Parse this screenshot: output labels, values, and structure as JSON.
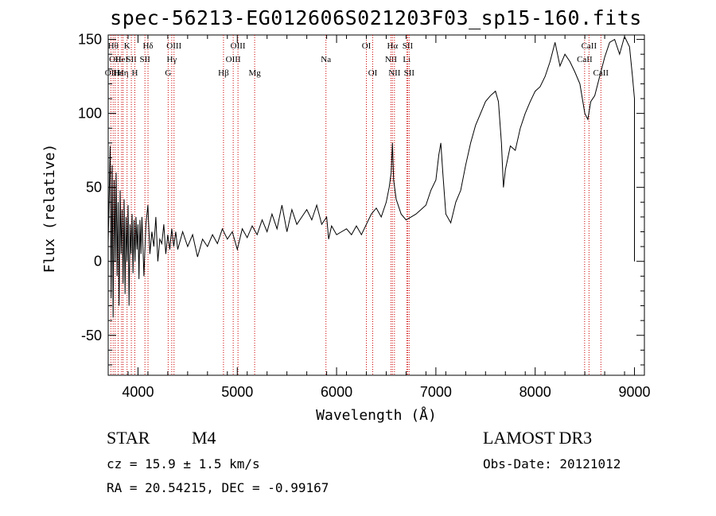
{
  "chart_data": {
    "type": "line",
    "title": "spec-56213-EG012606S021203F03_sp15-160.fits",
    "xlabel": "Wavelength (Å)",
    "ylabel": "Flux (relative)",
    "xlim": [
      3700,
      9100
    ],
    "ylim": [
      -77,
      153
    ],
    "xticks": [
      4000,
      5000,
      6000,
      7000,
      8000,
      9000
    ],
    "yticks": [
      -50,
      0,
      50,
      100,
      150
    ],
    "grid": false,
    "line_color": "#000000",
    "marker_color": "#cc0000",
    "series": [
      {
        "values": [
          [
            3700,
            12
          ],
          [
            3720,
            78
          ],
          [
            3730,
            -25
          ],
          [
            3740,
            65
          ],
          [
            3750,
            -38
          ],
          [
            3760,
            55
          ],
          [
            3770,
            0
          ],
          [
            3780,
            60
          ],
          [
            3790,
            -10
          ],
          [
            3800,
            40
          ],
          [
            3810,
            -30
          ],
          [
            3820,
            48
          ],
          [
            3830,
            5
          ],
          [
            3840,
            35
          ],
          [
            3850,
            -15
          ],
          [
            3860,
            42
          ],
          [
            3870,
            -22
          ],
          [
            3880,
            30
          ],
          [
            3890,
            0
          ],
          [
            3900,
            38
          ],
          [
            3910,
            -30
          ],
          [
            3920,
            25
          ],
          [
            3930,
            5
          ],
          [
            3940,
            32
          ],
          [
            3950,
            -8
          ],
          [
            3960,
            28
          ],
          [
            3970,
            0
          ],
          [
            3980,
            30
          ],
          [
            3990,
            8
          ],
          [
            4000,
            25
          ],
          [
            4010,
            -12
          ],
          [
            4020,
            28
          ],
          [
            4030,
            5
          ],
          [
            4040,
            30
          ],
          [
            4060,
            -10
          ],
          [
            4080,
            25
          ],
          [
            4100,
            38
          ],
          [
            4120,
            5
          ],
          [
            4140,
            20
          ],
          [
            4160,
            10
          ],
          [
            4180,
            30
          ],
          [
            4200,
            0
          ],
          [
            4220,
            15
          ],
          [
            4240,
            12
          ],
          [
            4260,
            25
          ],
          [
            4280,
            5
          ],
          [
            4300,
            18
          ],
          [
            4320,
            8
          ],
          [
            4340,
            22
          ],
          [
            4360,
            10
          ],
          [
            4380,
            20
          ],
          [
            4400,
            8
          ],
          [
            4450,
            20
          ],
          [
            4500,
            10
          ],
          [
            4550,
            18
          ],
          [
            4600,
            3
          ],
          [
            4650,
            15
          ],
          [
            4700,
            10
          ],
          [
            4750,
            18
          ],
          [
            4800,
            12
          ],
          [
            4850,
            22
          ],
          [
            4900,
            15
          ],
          [
            4950,
            20
          ],
          [
            5000,
            8
          ],
          [
            5050,
            22
          ],
          [
            5100,
            16
          ],
          [
            5150,
            24
          ],
          [
            5200,
            18
          ],
          [
            5250,
            28
          ],
          [
            5300,
            20
          ],
          [
            5350,
            32
          ],
          [
            5400,
            22
          ],
          [
            5450,
            38
          ],
          [
            5500,
            20
          ],
          [
            5550,
            35
          ],
          [
            5600,
            25
          ],
          [
            5650,
            30
          ],
          [
            5700,
            35
          ],
          [
            5750,
            28
          ],
          [
            5800,
            38
          ],
          [
            5850,
            25
          ],
          [
            5900,
            30
          ],
          [
            5920,
            15
          ],
          [
            5950,
            24
          ],
          [
            6000,
            18
          ],
          [
            6050,
            20
          ],
          [
            6100,
            22
          ],
          [
            6150,
            18
          ],
          [
            6200,
            24
          ],
          [
            6250,
            18
          ],
          [
            6300,
            25
          ],
          [
            6350,
            32
          ],
          [
            6400,
            36
          ],
          [
            6450,
            30
          ],
          [
            6500,
            40
          ],
          [
            6530,
            50
          ],
          [
            6550,
            60
          ],
          [
            6563,
            80
          ],
          [
            6575,
            55
          ],
          [
            6600,
            42
          ],
          [
            6650,
            32
          ],
          [
            6700,
            28
          ],
          [
            6750,
            30
          ],
          [
            6800,
            32
          ],
          [
            6850,
            35
          ],
          [
            6900,
            38
          ],
          [
            6950,
            48
          ],
          [
            7000,
            55
          ],
          [
            7030,
            72
          ],
          [
            7050,
            80
          ],
          [
            7070,
            60
          ],
          [
            7100,
            32
          ],
          [
            7150,
            26
          ],
          [
            7200,
            40
          ],
          [
            7250,
            48
          ],
          [
            7300,
            65
          ],
          [
            7350,
            80
          ],
          [
            7400,
            92
          ],
          [
            7450,
            100
          ],
          [
            7500,
            108
          ],
          [
            7550,
            112
          ],
          [
            7600,
            115
          ],
          [
            7630,
            108
          ],
          [
            7660,
            80
          ],
          [
            7680,
            50
          ],
          [
            7700,
            62
          ],
          [
            7750,
            78
          ],
          [
            7800,
            75
          ],
          [
            7850,
            90
          ],
          [
            7900,
            100
          ],
          [
            7950,
            108
          ],
          [
            8000,
            115
          ],
          [
            8050,
            118
          ],
          [
            8100,
            125
          ],
          [
            8150,
            135
          ],
          [
            8200,
            148
          ],
          [
            8250,
            132
          ],
          [
            8300,
            140
          ],
          [
            8350,
            135
          ],
          [
            8400,
            128
          ],
          [
            8450,
            120
          ],
          [
            8500,
            100
          ],
          [
            8530,
            96
          ],
          [
            8560,
            108
          ],
          [
            8600,
            112
          ],
          [
            8650,
            125
          ],
          [
            8700,
            138
          ],
          [
            8750,
            148
          ],
          [
            8800,
            150
          ],
          [
            8850,
            140
          ],
          [
            8900,
            152
          ],
          [
            8950,
            145
          ],
          [
            8980,
            125
          ],
          [
            9000,
            110
          ],
          [
            9000,
            28
          ],
          [
            9000,
            0
          ]
        ]
      }
    ],
    "line_markers": [
      {
        "wavelength": 3727,
        "row": 2,
        "label": "OII"
      },
      {
        "wavelength": 3750,
        "row": 0,
        "label": "Hθ"
      },
      {
        "wavelength": 3770,
        "row": 1,
        "label": "OII"
      },
      {
        "wavelength": 3800,
        "row": 2,
        "label": "Hε"
      },
      {
        "wavelength": 3835,
        "row": 1,
        "label": "HeI"
      },
      {
        "wavelength": 3850,
        "row": 2,
        "label": "Hη"
      },
      {
        "wavelength": 3890,
        "row": 0,
        "label": "K"
      },
      {
        "wavelength": 3933,
        "row": 1,
        "label": "SII"
      },
      {
        "wavelength": 3968,
        "row": 2,
        "label": "H"
      },
      {
        "wavelength": 4101,
        "row": 0,
        "label": "Hδ"
      },
      {
        "wavelength": 4070,
        "row": 1,
        "label": "SII"
      },
      {
        "wavelength": 4304,
        "row": 2,
        "label": "G"
      },
      {
        "wavelength": 4340,
        "row": 1,
        "label": "Hγ"
      },
      {
        "wavelength": 4363,
        "row": 0,
        "label": "OIII"
      },
      {
        "wavelength": 4861,
        "row": 2,
        "label": "Hβ"
      },
      {
        "wavelength": 4959,
        "row": 1,
        "label": "OIII"
      },
      {
        "wavelength": 5007,
        "row": 0,
        "label": "OIII"
      },
      {
        "wavelength": 5175,
        "row": 2,
        "label": "Mg"
      },
      {
        "wavelength": 5893,
        "row": 1,
        "label": "Na"
      },
      {
        "wavelength": 6300,
        "row": 0,
        "label": "OI"
      },
      {
        "wavelength": 6364,
        "row": 2,
        "label": "OI"
      },
      {
        "wavelength": 6548,
        "row": 1,
        "label": "NII"
      },
      {
        "wavelength": 6563,
        "row": 0,
        "label": "Hα"
      },
      {
        "wavelength": 6583,
        "row": 2,
        "label": "NII"
      },
      {
        "wavelength": 6707,
        "row": 1,
        "label": "Li"
      },
      {
        "wavelength": 6716,
        "row": 0,
        "label": "SII"
      },
      {
        "wavelength": 6731,
        "row": 2,
        "label": "SII"
      },
      {
        "wavelength": 8498,
        "row": 1,
        "label": "CaII"
      },
      {
        "wavelength": 8542,
        "row": 0,
        "label": "CaII"
      },
      {
        "wavelength": 8662,
        "row": 2,
        "label": "CaII"
      }
    ]
  },
  "info": {
    "object_class": "STAR",
    "subclass": "M4",
    "survey": "LAMOST DR3",
    "redshift_line": "cz = 15.9 ± 1.5 km/s",
    "obs_date_line": "Obs-Date: 20121012",
    "coords_line": "RA =  20.54215, DEC =  -0.99167"
  }
}
